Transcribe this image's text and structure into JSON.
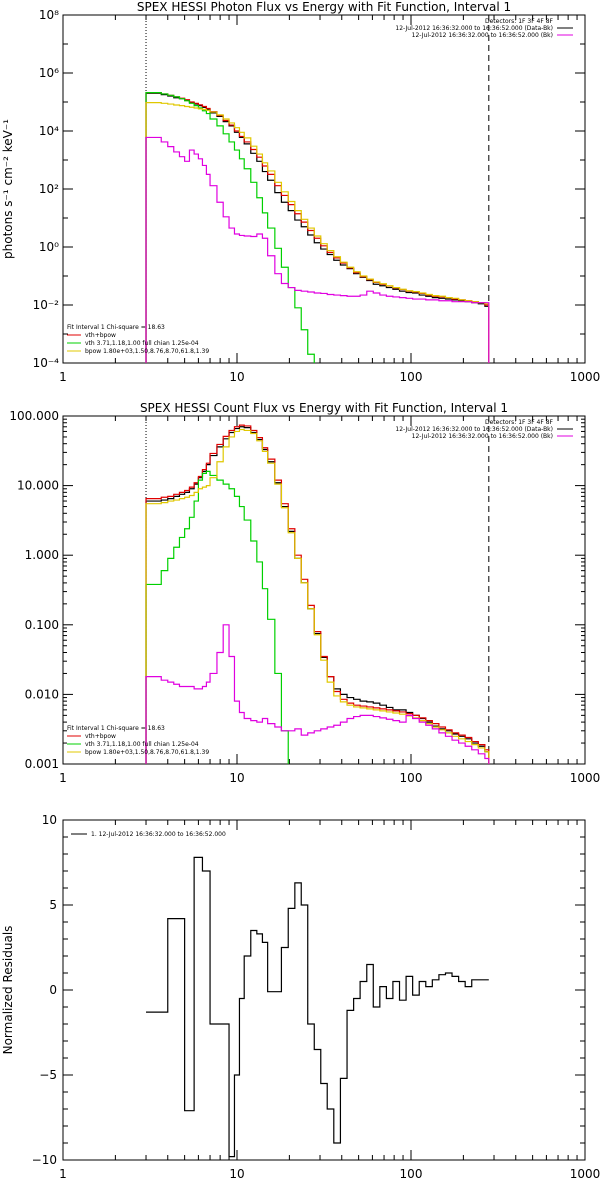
{
  "colors": {
    "data": "#000000",
    "sum": "#e00000",
    "vth": "#00d000",
    "bpow": "#e0c800",
    "bk": "#e000e0"
  },
  "panels": [
    {
      "id": "photon",
      "title": "SPEX HESSI Photon Flux vs Energy with Fit Function, Interval 1",
      "ylabel": "photons s⁻¹ cm⁻² keV⁻¹",
      "ytick_labels": [
        "10⁻⁴",
        "10⁻²",
        "10⁰",
        "10²",
        "10⁴",
        "10⁶",
        "10⁸"
      ],
      "xtick_labels": [
        "1",
        "10",
        "100",
        "1000"
      ],
      "legend_tr": [
        "Detectors: 1F 3F 4F 8F",
        "12-Jul-2012 16:36:32.000 to 16:36:52.000 (Data-Bk)",
        "12-Jul-2012 16:36:32.000 to 16:36:52.000 (Bk)"
      ],
      "legend_bl": [
        "Fit Interval 1    Chi-square = 18.63",
        "vth+bpow",
        "vth 3.71,1.18,1.00  full chian 1.25e-04",
        "bpow 1.80e+03,1.50,8.76,8.70,61.8,1.39"
      ]
    },
    {
      "id": "count",
      "title": "SPEX HESSI Count Flux vs Energy with Fit Function, Interval 1",
      "ylabel": "",
      "ytick_labels": [
        "0.001",
        "0.010",
        "0.100",
        "1.000",
        "10.000",
        "100.000"
      ],
      "xtick_labels": [
        "1",
        "10",
        "100",
        "1000"
      ],
      "legend_tr": [
        "Detectors: 1F 3F 4F 8F",
        "12-Jul-2012 16:36:32.000 to 16:36:52.000 (Data-Bk)",
        "12-Jul-2012 16:36:32.000 to 16:36:52.000 (Bk)"
      ],
      "legend_bl": [
        "Fit Interval 1    Chi-square = 18.63",
        "vth+bpow",
        "vth 3.71,1.18,1.00  full chian 1.25e-04",
        "bpow 1.80e+03,1.50,8.76,8.70,61.8,1.39"
      ]
    },
    {
      "id": "resid",
      "title": "",
      "ylabel": "Normalized Residuals",
      "ytick_labels": [
        "−10",
        "−5",
        "0",
        "5",
        "10"
      ],
      "xtick_labels": [
        "1",
        "10",
        "100",
        "1000"
      ],
      "legend_tl": "1. 12-Jul-2012 16:36:32.000 to 16:36:52.000"
    }
  ],
  "chart_data": [
    {
      "type": "line",
      "step": true,
      "xscale": "log",
      "yscale": "log",
      "xlim": [
        1,
        1000
      ],
      "ylim": [
        0.0001,
        100000000
      ],
      "title": "SPEX HESSI Photon Flux vs Energy with Fit Function, Interval 1",
      "ylabel": "photons s⁻¹ cm⁻² keV⁻¹",
      "xlabel": "",
      "vlines": [
        {
          "x": 3.0,
          "style": "dotted"
        },
        {
          "x": 280,
          "style": "dashed"
        }
      ],
      "edges": [
        3.0,
        3.33,
        3.67,
        4.0,
        4.33,
        4.67,
        5.0,
        5.33,
        5.67,
        6.0,
        6.33,
        6.67,
        7.0,
        7.67,
        8.33,
        9.0,
        9.67,
        10.33,
        11.0,
        12.0,
        13.0,
        14.0,
        15.0,
        16.5,
        18.0,
        19.7,
        21.5,
        23.4,
        25.5,
        27.8,
        30.3,
        33.0,
        36.0,
        39.3,
        42.9,
        46.8,
        51.0,
        55.7,
        60.7,
        66.2,
        72.2,
        78.7,
        85.9,
        93.7,
        102.2,
        111.5,
        121.6,
        132.6,
        144.7,
        157.8,
        172.1,
        187.8,
        204.8,
        223.4,
        243.7,
        265.8,
        280
      ],
      "series": [
        {
          "color": "#000000",
          "values": [
            200000.0,
            200000.0,
            180000.0,
            160000.0,
            140000.0,
            130000.0,
            115000.0,
            95000.0,
            85000.0,
            75000.0,
            65000.0,
            55000.0,
            42000.0,
            32000.0,
            21000.0,
            15000.0,
            9000.0,
            6000.0,
            3600.0,
            1700.0,
            900.0,
            400.0,
            200.0,
            75.0,
            35.0,
            18.0,
            8.5,
            5.0,
            2.6,
            1.4,
            0.85,
            0.55,
            0.35,
            0.24,
            0.18,
            0.12,
            0.09,
            0.07,
            0.052,
            0.046,
            0.04,
            0.035,
            0.03,
            0.027,
            0.026,
            0.022,
            0.02,
            0.018,
            0.017,
            0.016,
            0.015,
            0.014,
            0.013,
            0.012,
            0.011,
            0.009
          ]
        },
        {
          "color": "#e00000",
          "values": [
            210000.0,
            210000.0,
            190000.0,
            170000.0,
            150000.0,
            135000.0,
            120000.0,
            100000.0,
            90000.0,
            80000.0,
            70000.0,
            60000.0,
            46000.0,
            34000.0,
            23000.0,
            16000.0,
            10000.0,
            6500.0,
            4200.0,
            2300.0,
            1250.0,
            620.0,
            320.0,
            130.0,
            60.0,
            29.0,
            14.0,
            7.2,
            3.7,
            2.0,
            1.1,
            0.65,
            0.42,
            0.28,
            0.19,
            0.13,
            0.095,
            0.075,
            0.06,
            0.052,
            0.045,
            0.039,
            0.034,
            0.03,
            0.028,
            0.025,
            0.022,
            0.02,
            0.019,
            0.018,
            0.016,
            0.015,
            0.014,
            0.013,
            0.012,
            0.01
          ]
        },
        {
          "color": "#00d000",
          "values": [
            210000.0,
            210000.0,
            190000.0,
            170000.0,
            150000.0,
            130000.0,
            110000.0,
            90000.0,
            75000.0,
            62000.0,
            50000.0,
            40000.0,
            26000.0,
            15000.0,
            8000.0,
            4200.0,
            2200.0,
            1100.0,
            500.0,
            170.0,
            50.0,
            15.0,
            4.5,
            0.9,
            0.2,
            0.04,
            0.008,
            0.0014,
            0.0002,
            1e-05,
            null,
            null,
            null,
            null,
            null,
            null,
            null,
            null,
            null,
            null,
            null,
            null,
            null,
            null,
            null,
            null,
            null,
            null,
            null,
            null,
            null,
            null,
            null,
            null,
            null,
            null
          ]
        },
        {
          "color": "#e0c800",
          "values": [
            95000.0,
            95000.0,
            90000.0,
            85000.0,
            79000.0,
            75000.0,
            70000.0,
            66000.0,
            62000.0,
            58000.0,
            55000.0,
            52000.0,
            45000.0,
            36000.0,
            26000.0,
            19000.0,
            13000.0,
            9000.0,
            5800.0,
            3000.0,
            1600.0,
            800.0,
            420.0,
            170.0,
            80.0,
            37.0,
            18.0,
            9.0,
            4.5,
            2.4,
            1.3,
            0.75,
            0.46,
            0.3,
            0.2,
            0.14,
            0.1,
            0.078,
            0.062,
            0.054,
            0.046,
            0.04,
            0.035,
            0.031,
            0.029,
            0.026,
            0.023,
            0.021,
            0.02,
            0.018,
            0.017,
            0.015,
            0.014,
            0.013,
            0.012,
            0.011
          ]
        },
        {
          "color": "#e000e0",
          "values": [
            6000.0,
            6000.0,
            4200.0,
            2900.0,
            1900.0,
            1300.0,
            900.0,
            2200.0,
            1600.0,
            1100.0,
            650.0,
            320.0,
            130.0,
            35.0,
            11.0,
            4.5,
            2.8,
            2.5,
            2.4,
            2.3,
            2.8,
            2.0,
            0.5,
            0.12,
            0.055,
            0.04,
            0.032,
            0.03,
            0.028,
            0.026,
            0.025,
            0.023,
            0.022,
            0.021,
            0.02,
            0.02,
            0.022,
            0.03,
            0.026,
            0.022,
            0.02,
            0.019,
            0.018,
            0.017,
            0.016,
            0.016,
            0.015,
            0.015,
            0.014,
            0.014,
            0.013,
            0.013,
            0.013,
            0.012,
            0.012,
            0.012
          ]
        }
      ]
    },
    {
      "type": "line",
      "step": true,
      "xscale": "log",
      "yscale": "log",
      "xlim": [
        1,
        1000
      ],
      "ylim": [
        0.001,
        100
      ],
      "title": "SPEX HESSI Count Flux vs Energy with Fit Function, Interval 1",
      "ylabel": "",
      "xlabel": "",
      "vlines": [
        {
          "x": 3.0,
          "style": "dotted"
        },
        {
          "x": 280,
          "style": "dashed"
        }
      ],
      "edges": [
        3.0,
        3.33,
        3.67,
        4.0,
        4.33,
        4.67,
        5.0,
        5.33,
        5.67,
        6.0,
        6.33,
        6.67,
        7.0,
        7.67,
        8.33,
        9.0,
        9.67,
        10.33,
        11.0,
        12.0,
        13.0,
        14.0,
        15.0,
        16.5,
        18.0,
        19.7,
        21.5,
        23.4,
        25.5,
        27.8,
        30.3,
        33.0,
        36.0,
        39.3,
        42.9,
        46.8,
        51.0,
        55.7,
        60.7,
        66.2,
        72.2,
        78.7,
        85.9,
        93.7,
        102.2,
        111.5,
        121.6,
        132.6,
        144.7,
        157.8,
        172.1,
        187.8,
        204.8,
        223.4,
        243.7,
        265.8,
        280
      ],
      "series": [
        {
          "color": "#000000",
          "values": [
            6.0,
            6.0,
            6.2,
            6.5,
            7.0,
            7.5,
            8.0,
            9.0,
            10.5,
            13.0,
            16.0,
            20.0,
            27.0,
            36.0,
            47.0,
            58.0,
            66.0,
            70.0,
            68.0,
            58.0,
            46.0,
            33.0,
            22.0,
            11.0,
            5.0,
            2.2,
            0.9,
            0.4,
            0.17,
            0.075,
            0.034,
            0.018,
            0.012,
            0.01,
            0.009,
            0.0085,
            0.008,
            0.0078,
            0.0075,
            0.007,
            0.0065,
            0.006,
            0.006,
            0.0055,
            0.005,
            0.0045,
            0.004,
            0.0035,
            0.0032,
            0.003,
            0.0027,
            0.0025,
            0.0023,
            0.002,
            0.0018,
            0.0015
          ]
        },
        {
          "color": "#e00000",
          "values": [
            6.5,
            6.5,
            6.8,
            7.0,
            7.5,
            8.0,
            8.5,
            9.5,
            11.0,
            13.5,
            17.0,
            21.0,
            29.0,
            39.0,
            51.0,
            62.0,
            70.0,
            74.0,
            72.0,
            62.0,
            49.0,
            35.0,
            24.0,
            12.0,
            5.5,
            2.4,
            1.0,
            0.45,
            0.19,
            0.08,
            0.035,
            0.018,
            0.011,
            0.0085,
            0.0075,
            0.007,
            0.0068,
            0.0066,
            0.0064,
            0.0062,
            0.006,
            0.0058,
            0.0056,
            0.0053,
            0.005,
            0.0046,
            0.0042,
            0.0038,
            0.0034,
            0.0031,
            0.0028,
            0.0026,
            0.0024,
            0.0021,
            0.0019,
            0.0016
          ]
        },
        {
          "color": "#00d000",
          "values": [
            0.38,
            0.38,
            0.6,
            0.9,
            1.3,
            1.8,
            2.4,
            3.5,
            6.0,
            12.0,
            15.0,
            16.0,
            14.0,
            12.0,
            10.5,
            9.0,
            7.0,
            5.0,
            3.2,
            1.6,
            0.8,
            0.33,
            0.12,
            0.02,
            0.003,
            0.0001,
            null,
            null,
            null,
            null,
            null,
            null,
            null,
            null,
            null,
            null,
            null,
            null,
            null,
            null,
            null,
            null,
            null,
            null,
            null,
            null,
            null,
            null,
            null,
            null,
            null,
            null,
            null,
            null,
            null,
            null
          ]
        },
        {
          "color": "#e0c800",
          "values": [
            5.5,
            5.5,
            5.7,
            6.0,
            6.2,
            6.5,
            6.8,
            7.2,
            8.0,
            9.0,
            9.5,
            10.0,
            13.0,
            22.0,
            36.0,
            50.0,
            60.0,
            64.0,
            62.0,
            56.0,
            44.0,
            31.0,
            21.0,
            10.5,
            4.8,
            2.1,
            0.9,
            0.4,
            0.17,
            0.072,
            0.031,
            0.015,
            0.0095,
            0.0078,
            0.007,
            0.0066,
            0.0064,
            0.0062,
            0.006,
            0.0058,
            0.0056,
            0.0054,
            0.0052,
            0.0049,
            0.0046,
            0.0042,
            0.0038,
            0.0034,
            0.0031,
            0.0028,
            0.0025,
            0.0023,
            0.0021,
            0.0019,
            0.0017,
            0.0015
          ]
        },
        {
          "color": "#e000e0",
          "values": [
            0.018,
            0.018,
            0.016,
            0.015,
            0.014,
            0.013,
            0.013,
            0.013,
            0.012,
            0.012,
            0.013,
            0.015,
            0.02,
            0.04,
            0.1,
            0.035,
            0.008,
            0.0055,
            0.0045,
            0.0042,
            0.004,
            0.0045,
            0.0038,
            0.0034,
            0.003,
            0.003,
            0.0032,
            0.0026,
            0.0028,
            0.003,
            0.0032,
            0.0034,
            0.0036,
            0.004,
            0.0045,
            0.0048,
            0.005,
            0.005,
            0.0048,
            0.0046,
            0.0044,
            0.0042,
            0.004,
            0.005,
            0.0045,
            0.004,
            0.0036,
            0.0032,
            0.0028,
            0.0025,
            0.0022,
            0.002,
            0.0018,
            0.0016,
            0.0014,
            0.0012
          ]
        }
      ]
    },
    {
      "type": "line",
      "step": true,
      "xscale": "log",
      "yscale": "linear",
      "xlim": [
        1,
        1000
      ],
      "ylim": [
        -10,
        10
      ],
      "title": "",
      "ylabel": "Normalized Residuals",
      "xlabel": "",
      "edges": [
        3.0,
        3.33,
        3.67,
        4.0,
        4.33,
        4.67,
        5.0,
        5.33,
        5.67,
        6.0,
        6.33,
        6.67,
        7.0,
        7.67,
        8.33,
        9.0,
        9.67,
        10.33,
        11.0,
        12.0,
        13.0,
        14.0,
        15.0,
        16.5,
        18.0,
        19.7,
        21.5,
        23.4,
        25.5,
        27.8,
        30.3,
        33.0,
        36.0,
        39.3,
        42.9,
        46.8,
        51.0,
        55.7,
        60.7,
        66.2,
        72.2,
        78.7,
        85.9,
        93.7,
        102.2,
        111.5,
        121.6,
        132.6,
        144.7,
        157.8,
        172.1,
        187.8,
        204.8,
        223.4,
        243.7,
        265.8,
        280
      ],
      "series": [
        {
          "color": "#000000",
          "values": [
            -1.3,
            -1.3,
            -1.3,
            4.2,
            4.2,
            4.2,
            -7.1,
            -7.1,
            7.8,
            7.8,
            7.0,
            7.0,
            -2.0,
            -2.0,
            -2.0,
            -9.8,
            -5.0,
            -0.5,
            2.0,
            3.5,
            3.3,
            2.8,
            -0.1,
            -0.1,
            2.5,
            4.8,
            6.3,
            5.0,
            -2.0,
            -3.5,
            -5.5,
            -7.0,
            -9.0,
            -5.2,
            -1.2,
            -0.5,
            0.5,
            1.5,
            -1.0,
            0.2,
            -0.5,
            0.5,
            -0.6,
            0.8,
            -0.3,
            0.5,
            0.2,
            0.6,
            0.9,
            1.0,
            0.8,
            0.5,
            0.2,
            0.6,
            0.6,
            0.6
          ]
        }
      ]
    }
  ]
}
